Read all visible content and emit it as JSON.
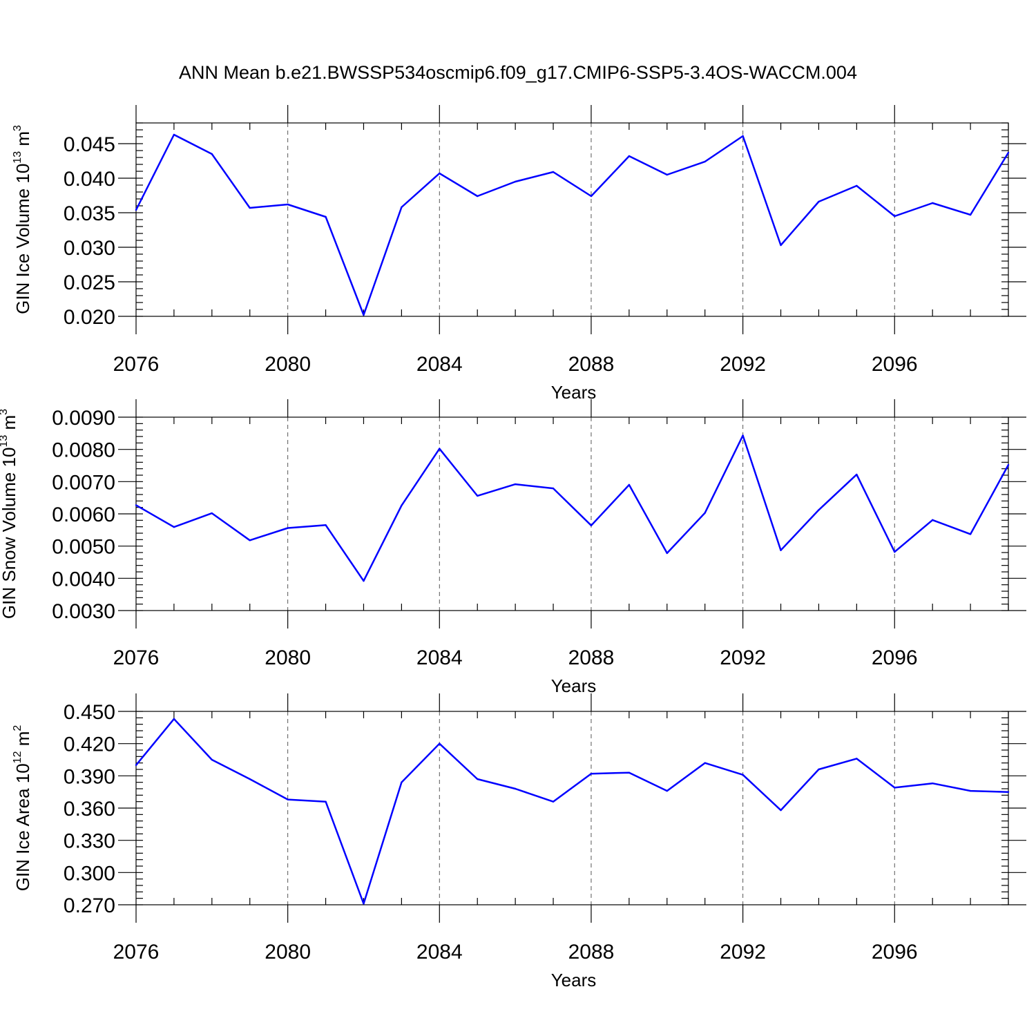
{
  "title": "ANN Mean b.e21.BWSSP534oscmip6.f09_g17.CMIP6-SSP5-3.4OS-WACCM.004",
  "colors": {
    "series": "#0000ff",
    "frame": "#000000",
    "grid": "#555555"
  },
  "chart_data": [
    {
      "type": "line",
      "title": "",
      "xlabel": "Years",
      "ylabel": {
        "text": "GIN Ice Volume 10",
        "exp1": "13",
        "unit": " m",
        "exp2": "3"
      },
      "xlim": [
        2076,
        2099
      ],
      "ylim": [
        0.02,
        0.048
      ],
      "xticks": [
        2076,
        2080,
        2084,
        2088,
        2092,
        2096
      ],
      "yticks": [
        0.02,
        0.025,
        0.03,
        0.035,
        0.04,
        0.045
      ],
      "ytick_labels": [
        "0.020",
        "0.025",
        "0.030",
        "0.035",
        "0.040",
        "0.045"
      ],
      "yminor_step": 0.001,
      "grid": "vertical dashed at major x ticks",
      "x": [
        2076,
        2077,
        2078,
        2079,
        2080,
        2081,
        2082,
        2083,
        2084,
        2085,
        2086,
        2087,
        2088,
        2089,
        2090,
        2091,
        2092,
        2093,
        2094,
        2095,
        2096,
        2097,
        2098,
        2099
      ],
      "y": [
        0.0354,
        0.0463,
        0.0435,
        0.0357,
        0.0362,
        0.0344,
        0.0202,
        0.0358,
        0.0407,
        0.0374,
        0.0395,
        0.0409,
        0.0374,
        0.0432,
        0.0405,
        0.0424,
        0.0461,
        0.0303,
        0.0366,
        0.0389,
        0.0345,
        0.0364,
        0.0347,
        0.0437
      ]
    },
    {
      "type": "line",
      "title": "",
      "xlabel": "Years",
      "ylabel": {
        "text": "GIN Snow Volume 10",
        "exp1": "13",
        "unit": " m",
        "exp2": "3"
      },
      "xlim": [
        2076,
        2099
      ],
      "ylim": [
        0.003,
        0.009
      ],
      "xticks": [
        2076,
        2080,
        2084,
        2088,
        2092,
        2096
      ],
      "yticks": [
        0.003,
        0.004,
        0.005,
        0.006,
        0.007,
        0.008,
        0.009
      ],
      "ytick_labels": [
        "0.0030",
        "0.0040",
        "0.0050",
        "0.0060",
        "0.0070",
        "0.0080",
        "0.0090"
      ],
      "yminor_step": 0.0002,
      "grid": "vertical dashed at major x ticks",
      "x": [
        2076,
        2077,
        2078,
        2079,
        2080,
        2081,
        2082,
        2083,
        2084,
        2085,
        2086,
        2087,
        2088,
        2089,
        2090,
        2091,
        2092,
        2093,
        2094,
        2095,
        2096,
        2097,
        2098,
        2099
      ],
      "y": [
        0.00627,
        0.00559,
        0.00602,
        0.00518,
        0.00556,
        0.00565,
        0.00392,
        0.00626,
        0.00802,
        0.00656,
        0.00692,
        0.00679,
        0.00564,
        0.0069,
        0.00478,
        0.00603,
        0.00843,
        0.00487,
        0.00612,
        0.00722,
        0.00482,
        0.00581,
        0.00537,
        0.00752
      ]
    },
    {
      "type": "line",
      "title": "",
      "xlabel": "Years",
      "ylabel": {
        "text": "GIN Ice Area 10",
        "exp1": "12",
        "unit": " m",
        "exp2": "2"
      },
      "xlim": [
        2076,
        2099
      ],
      "ylim": [
        0.27,
        0.45
      ],
      "xticks": [
        2076,
        2080,
        2084,
        2088,
        2092,
        2096
      ],
      "yticks": [
        0.27,
        0.3,
        0.33,
        0.36,
        0.39,
        0.42,
        0.45
      ],
      "ytick_labels": [
        "0.270",
        "0.300",
        "0.330",
        "0.360",
        "0.390",
        "0.420",
        "0.450"
      ],
      "yminor_step": 0.006,
      "grid": "vertical dashed at major x ticks",
      "x": [
        2076,
        2077,
        2078,
        2079,
        2080,
        2081,
        2082,
        2083,
        2084,
        2085,
        2086,
        2087,
        2088,
        2089,
        2090,
        2091,
        2092,
        2093,
        2094,
        2095,
        2096,
        2097,
        2098,
        2099
      ],
      "y": [
        0.4,
        0.443,
        0.405,
        0.387,
        0.368,
        0.366,
        0.271,
        0.384,
        0.42,
        0.387,
        0.378,
        0.366,
        0.392,
        0.393,
        0.376,
        0.402,
        0.391,
        0.358,
        0.396,
        0.406,
        0.379,
        0.383,
        0.376,
        0.375
      ]
    }
  ]
}
